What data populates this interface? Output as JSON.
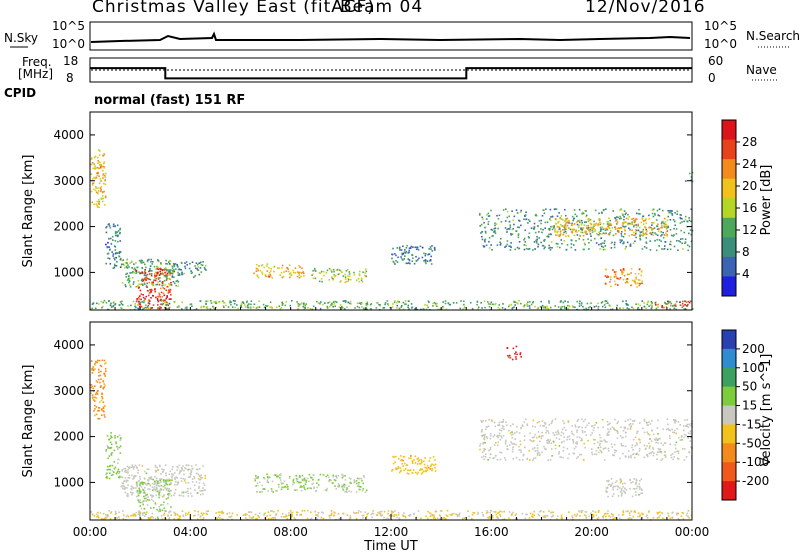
{
  "header": {
    "title": "Christmas Valley East (fitACF)",
    "beam": "Beam 04",
    "date": "12/Nov/2016"
  },
  "strip": {
    "nsky_label": "N.Sky",
    "nsky_ticks": [
      "10^5",
      "10^0"
    ],
    "nsearch_label": "N.Search",
    "nsearch_ticks": [
      "10^5",
      "10^0"
    ],
    "freq_label_1": "Freq.",
    "freq_label_2": "[MHz]",
    "freq_ticks": [
      "18",
      "8"
    ],
    "nave_label": "Nave",
    "nave_ticks": [
      "60",
      "0"
    ],
    "cpid_label": "CPID",
    "cpid_value": "normal (fast) 151 RF"
  },
  "colors": {
    "power_scale": [
      "#1f1fe0",
      "#3c64b4",
      "#3b8f7a",
      "#4ea85a",
      "#b5d624",
      "#f2c21c",
      "#f28a1c",
      "#e8421c",
      "#d9141a"
    ],
    "velocity_scale": [
      "#2840b0",
      "#2f8cd0",
      "#3ea060",
      "#7ccc3c",
      "#c8c8c0",
      "#f2c21c",
      "#f28a1c",
      "#ef5a1c",
      "#e01818"
    ]
  },
  "chart_data": [
    {
      "type": "heatmap",
      "name": "power",
      "ylabel": "Slant Range [km]",
      "xlabel": "",
      "ylim": [
        180,
        4500
      ],
      "xlim": [
        0,
        24
      ],
      "yticks": [
        "1000",
        "2000",
        "3000",
        "4000"
      ],
      "colorbar_label": "Power [dB]",
      "colorbar_ticks": [
        "4",
        "8",
        "12",
        "16",
        "20",
        "24",
        "28"
      ],
      "regions": [
        {
          "t": [
            0.0,
            0.6
          ],
          "r": [
            2400,
            3700
          ],
          "v": 20
        },
        {
          "t": [
            0.6,
            1.2
          ],
          "r": [
            1100,
            2100
          ],
          "v": 8
        },
        {
          "t": [
            1.2,
            3.5
          ],
          "r": [
            700,
            1300
          ],
          "v": 12
        },
        {
          "t": [
            1.8,
            3.2
          ],
          "r": [
            200,
            1100
          ],
          "v": 28
        },
        {
          "t": [
            3.0,
            4.6
          ],
          "r": [
            900,
            1250
          ],
          "v": 10
        },
        {
          "t": [
            6.5,
            8.5
          ],
          "r": [
            900,
            1200
          ],
          "v": 20
        },
        {
          "t": [
            8.8,
            11.0
          ],
          "r": [
            800,
            1100
          ],
          "v": 16
        },
        {
          "t": [
            12.0,
            13.8
          ],
          "r": [
            1200,
            1600
          ],
          "v": 8
        },
        {
          "t": [
            0.0,
            24.0
          ],
          "r": [
            200,
            400
          ],
          "v": 12
        },
        {
          "t": [
            15.5,
            24.0
          ],
          "r": [
            1500,
            2400
          ],
          "v": 10
        },
        {
          "t": [
            18.5,
            23.0
          ],
          "r": [
            1800,
            2200
          ],
          "v": 20
        },
        {
          "t": [
            20.5,
            22.0
          ],
          "r": [
            700,
            1100
          ],
          "v": 22
        },
        {
          "t": [
            22.5,
            24.0
          ],
          "r": [
            250,
            400
          ],
          "v": 28
        },
        {
          "t": [
            23.7,
            24.0
          ],
          "r": [
            3000,
            3200
          ],
          "v": 8
        }
      ]
    },
    {
      "type": "heatmap",
      "name": "velocity",
      "ylabel": "Slant Range [km]",
      "xlabel": "Time UT",
      "ylim": [
        180,
        4500
      ],
      "xlim": [
        0,
        24
      ],
      "xticks": [
        "00:00",
        "04:00",
        "08:00",
        "12:00",
        "16:00",
        "20:00",
        "00:00"
      ],
      "yticks": [
        "1000",
        "2000",
        "3000",
        "4000"
      ],
      "colorbar_label": "Velocity [m s^-1]",
      "colorbar_ticks": [
        "200",
        "100",
        "50",
        "15",
        "-15",
        "-50",
        "-100",
        "-200"
      ],
      "regions": [
        {
          "t": [
            0.0,
            0.6
          ],
          "r": [
            2400,
            3700
          ],
          "v": -100
        },
        {
          "t": [
            0.6,
            1.2
          ],
          "r": [
            1100,
            2100
          ],
          "v": 50
        },
        {
          "t": [
            1.2,
            4.6
          ],
          "r": [
            700,
            1400
          ],
          "v": 0
        },
        {
          "t": [
            1.8,
            3.2
          ],
          "r": [
            200,
            1100
          ],
          "v": 30
        },
        {
          "t": [
            6.5,
            11.0
          ],
          "r": [
            800,
            1200
          ],
          "v": 30
        },
        {
          "t": [
            12.0,
            13.8
          ],
          "r": [
            1200,
            1600
          ],
          "v": -60
        },
        {
          "t": [
            0.0,
            24.0
          ],
          "r": [
            200,
            400
          ],
          "v": -30
        },
        {
          "t": [
            15.5,
            24.0
          ],
          "r": [
            1500,
            2400
          ],
          "v": 0
        },
        {
          "t": [
            20.5,
            22.0
          ],
          "r": [
            700,
            1100
          ],
          "v": 0
        },
        {
          "t": [
            16.6,
            17.2
          ],
          "r": [
            3700,
            4000
          ],
          "v": -200
        }
      ]
    },
    {
      "type": "line",
      "name": "frequency",
      "x": [
        0.0,
        3.0,
        3.0,
        15.0,
        15.0,
        24.0
      ],
      "y": [
        13.8,
        13.8,
        9.5,
        9.5,
        13.8,
        13.8
      ]
    }
  ]
}
